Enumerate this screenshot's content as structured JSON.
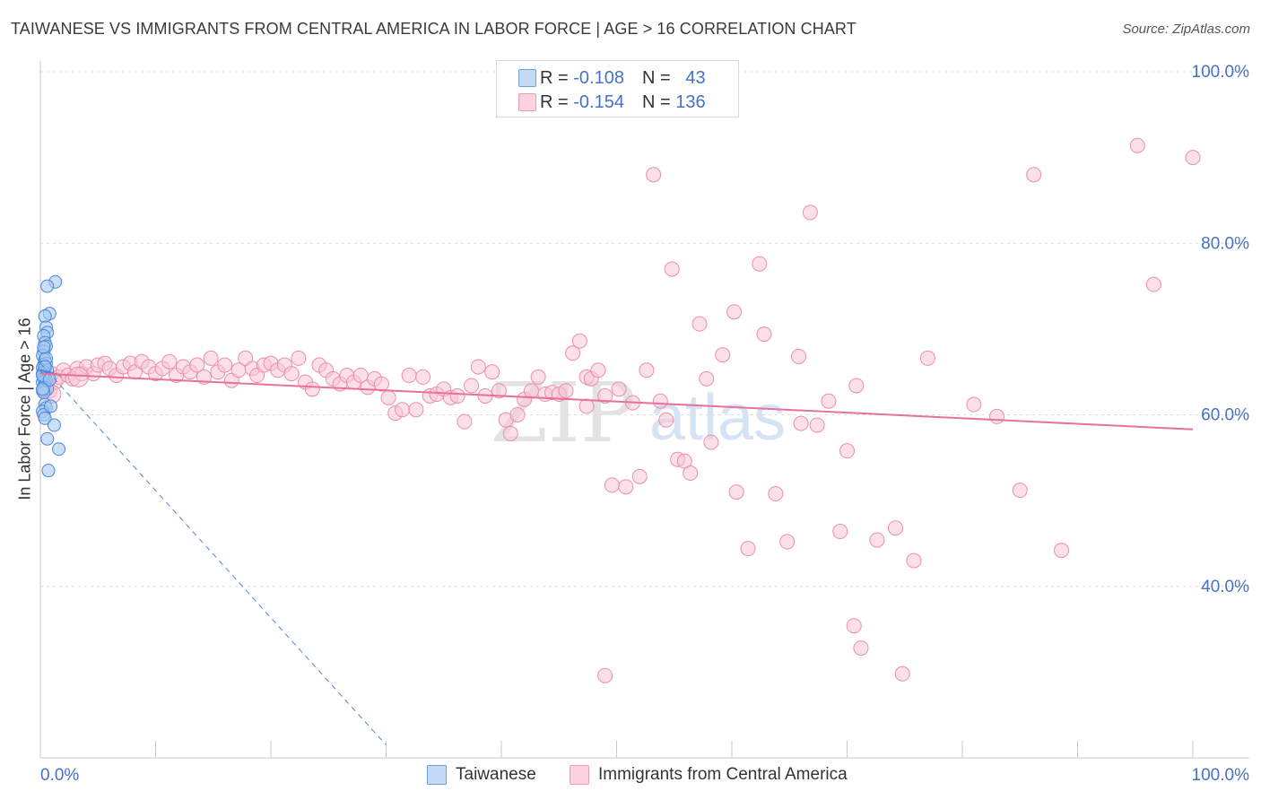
{
  "title": "TAIWANESE VS IMMIGRANTS FROM CENTRAL AMERICA IN LABOR FORCE | AGE > 16 CORRELATION CHART",
  "source": "Source: ZipAtlas.com",
  "watermark": {
    "zip": "ZIP",
    "atlas": "atlas"
  },
  "legend": {
    "r_label": "R =",
    "n_label": "N =",
    "series": [
      {
        "r": "-0.108",
        "n": "43",
        "color": "#a9c9f1"
      },
      {
        "r": "-0.154",
        "n": "136",
        "color": "#f7b9cb"
      }
    ]
  },
  "bottom_legend": [
    "Taiwanese",
    "Immigrants from Central America"
  ],
  "colors": {
    "blue_fill": "#a9c9f1",
    "blue_stroke": "#4a86d8",
    "pink_fill": "#f7c6d4",
    "pink_stroke": "#ea8fac",
    "pink_line": "#e8709b",
    "blue_line": "#4a86d8",
    "axis_text": "#4472c4"
  },
  "chart_data": {
    "type": "scatter",
    "title": "TAIWANESE VS IMMIGRANTS FROM CENTRAL AMERICA IN LABOR FORCE | AGE > 16 CORRELATION CHART",
    "xlabel": "",
    "ylabel": "In Labor Force | Age > 16",
    "xlim": [
      0,
      100
    ],
    "ylim": [
      20,
      100
    ],
    "x_tick_labels": [
      "0.0%",
      "100.0%"
    ],
    "y_tick_labels": [
      "100.0%",
      "80.0%",
      "60.0%",
      "40.0%"
    ],
    "y_ticks": [
      100,
      80,
      60,
      40
    ],
    "grid": true,
    "legend_position": "top-center",
    "series": [
      {
        "name": "Taiwanese",
        "color": "#a9c9f1",
        "trend": {
          "x": [
            0,
            30
          ],
          "y": [
            66.0,
            21.5
          ],
          "style": "dashed"
        },
        "points": [
          [
            1.3,
            75.5
          ],
          [
            0.6,
            75.0
          ],
          [
            0.8,
            71.8
          ],
          [
            0.4,
            71.5
          ],
          [
            0.5,
            70.2
          ],
          [
            0.6,
            69.6
          ],
          [
            0.3,
            69.2
          ],
          [
            0.4,
            68.4
          ],
          [
            0.5,
            68.0
          ],
          [
            0.3,
            67.4
          ],
          [
            0.2,
            66.9
          ],
          [
            0.4,
            66.4
          ],
          [
            0.5,
            66.0
          ],
          [
            0.3,
            65.8
          ],
          [
            0.2,
            65.5
          ],
          [
            0.6,
            65.2
          ],
          [
            0.3,
            65.0
          ],
          [
            0.2,
            64.8
          ],
          [
            0.4,
            64.5
          ],
          [
            0.3,
            64.2
          ],
          [
            0.5,
            64.0
          ],
          [
            0.2,
            63.8
          ],
          [
            0.4,
            63.5
          ],
          [
            0.3,
            63.2
          ],
          [
            0.6,
            63.0
          ],
          [
            0.2,
            62.8
          ],
          [
            0.3,
            62.6
          ],
          [
            0.4,
            61.2
          ],
          [
            0.5,
            60.8
          ],
          [
            0.2,
            60.4
          ],
          [
            0.3,
            60.0
          ],
          [
            0.4,
            59.6
          ],
          [
            1.2,
            58.8
          ],
          [
            0.6,
            57.2
          ],
          [
            1.6,
            56.0
          ],
          [
            0.7,
            53.5
          ],
          [
            0.2,
            64.6
          ],
          [
            0.8,
            64.1
          ],
          [
            0.5,
            66.6
          ],
          [
            0.3,
            67.9
          ],
          [
            0.9,
            61.0
          ],
          [
            0.2,
            63.0
          ],
          [
            0.4,
            65.6
          ]
        ]
      },
      {
        "name": "Immigrants from Central America",
        "color": "#f7c6d4",
        "trend": {
          "x": [
            0,
            100
          ],
          "y": [
            64.8,
            58.3
          ],
          "style": "solid"
        },
        "points": [
          [
            0.4,
            64.6
          ],
          [
            0.6,
            63.4
          ],
          [
            0.8,
            62.8
          ],
          [
            1.0,
            64.8
          ],
          [
            1.3,
            63.8
          ],
          [
            1.6,
            64.4
          ],
          [
            2.0,
            65.2
          ],
          [
            2.4,
            64.6
          ],
          [
            2.8,
            64.2
          ],
          [
            3.2,
            65.4
          ],
          [
            3.6,
            64.8
          ],
          [
            4.0,
            65.6
          ],
          [
            4.6,
            64.8
          ],
          [
            5.0,
            65.8
          ],
          [
            5.6,
            66.0
          ],
          [
            6.0,
            65.4
          ],
          [
            6.6,
            64.6
          ],
          [
            7.2,
            65.6
          ],
          [
            7.8,
            66.0
          ],
          [
            8.2,
            65.0
          ],
          [
            8.8,
            66.2
          ],
          [
            9.4,
            65.6
          ],
          [
            10.0,
            64.8
          ],
          [
            10.6,
            65.4
          ],
          [
            11.2,
            66.2
          ],
          [
            11.8,
            64.6
          ],
          [
            12.4,
            65.6
          ],
          [
            13.0,
            65.0
          ],
          [
            13.6,
            65.8
          ],
          [
            14.2,
            64.4
          ],
          [
            14.8,
            66.6
          ],
          [
            15.4,
            65.0
          ],
          [
            16.0,
            65.8
          ],
          [
            16.6,
            64.0
          ],
          [
            17.2,
            65.2
          ],
          [
            17.8,
            66.6
          ],
          [
            18.4,
            65.4
          ],
          [
            18.8,
            64.6
          ],
          [
            19.4,
            65.8
          ],
          [
            20.0,
            66.0
          ],
          [
            20.6,
            65.2
          ],
          [
            21.2,
            65.8
          ],
          [
            21.8,
            64.8
          ],
          [
            22.4,
            66.6
          ],
          [
            23.0,
            63.8
          ],
          [
            23.6,
            63.0
          ],
          [
            24.2,
            65.8
          ],
          [
            24.8,
            65.2
          ],
          [
            25.4,
            64.2
          ],
          [
            26.0,
            63.6
          ],
          [
            26.6,
            64.6
          ],
          [
            27.2,
            63.8
          ],
          [
            27.8,
            64.6
          ],
          [
            28.4,
            63.2
          ],
          [
            29.0,
            64.2
          ],
          [
            29.6,
            63.6
          ],
          [
            30.2,
            62.0
          ],
          [
            30.8,
            60.2
          ],
          [
            31.4,
            60.6
          ],
          [
            32.0,
            64.6
          ],
          [
            32.6,
            60.6
          ],
          [
            33.2,
            64.4
          ],
          [
            33.8,
            62.2
          ],
          [
            34.4,
            62.4
          ],
          [
            35.0,
            63.0
          ],
          [
            35.6,
            62.0
          ],
          [
            36.2,
            62.2
          ],
          [
            36.8,
            59.2
          ],
          [
            37.4,
            63.4
          ],
          [
            38.0,
            65.6
          ],
          [
            38.6,
            62.2
          ],
          [
            39.2,
            65.0
          ],
          [
            39.8,
            62.8
          ],
          [
            40.4,
            59.4
          ],
          [
            40.8,
            57.8
          ],
          [
            41.4,
            60.0
          ],
          [
            42.0,
            61.8
          ],
          [
            42.6,
            62.8
          ],
          [
            43.2,
            64.4
          ],
          [
            43.8,
            62.4
          ],
          [
            44.4,
            62.6
          ],
          [
            45.0,
            62.4
          ],
          [
            45.6,
            62.8
          ],
          [
            46.2,
            67.2
          ],
          [
            46.8,
            68.6
          ],
          [
            47.4,
            64.4
          ],
          [
            47.8,
            64.2
          ],
          [
            48.4,
            65.2
          ],
          [
            49.0,
            62.2
          ],
          [
            49.6,
            51.8
          ],
          [
            50.2,
            63.0
          ],
          [
            50.8,
            51.6
          ],
          [
            51.4,
            61.4
          ],
          [
            52.0,
            52.8
          ],
          [
            52.6,
            65.2
          ],
          [
            47.4,
            61.0
          ],
          [
            53.2,
            88.0
          ],
          [
            53.8,
            61.6
          ],
          [
            54.3,
            59.4
          ],
          [
            54.8,
            77.0
          ],
          [
            55.3,
            54.8
          ],
          [
            55.9,
            54.6
          ],
          [
            56.4,
            53.2
          ],
          [
            57.2,
            70.6
          ],
          [
            57.8,
            64.2
          ],
          [
            58.2,
            56.8
          ],
          [
            59.2,
            67.0
          ],
          [
            60.2,
            72.0
          ],
          [
            60.4,
            51.0
          ],
          [
            61.4,
            44.4
          ],
          [
            62.4,
            77.6
          ],
          [
            62.8,
            69.4
          ],
          [
            63.8,
            50.8
          ],
          [
            64.8,
            45.2
          ],
          [
            65.8,
            66.8
          ],
          [
            66.0,
            59.0
          ],
          [
            66.8,
            83.6
          ],
          [
            67.4,
            58.8
          ],
          [
            68.4,
            61.6
          ],
          [
            69.4,
            46.4
          ],
          [
            70.0,
            55.8
          ],
          [
            70.8,
            63.4
          ],
          [
            70.6,
            35.4
          ],
          [
            71.2,
            32.8
          ],
          [
            72.6,
            45.4
          ],
          [
            74.2,
            46.8
          ],
          [
            74.8,
            29.8
          ],
          [
            75.8,
            43.0
          ],
          [
            77.0,
            66.6
          ],
          [
            81.0,
            61.2
          ],
          [
            83.0,
            59.8
          ],
          [
            85.0,
            51.2
          ],
          [
            88.6,
            44.2
          ],
          [
            86.2,
            88.0
          ],
          [
            95.2,
            91.4
          ],
          [
            96.6,
            75.2
          ]
        ]
      }
    ],
    "extra_pink_points": [
      [
        49.0,
        29.6
      ],
      [
        100.0,
        90.0
      ]
    ]
  }
}
